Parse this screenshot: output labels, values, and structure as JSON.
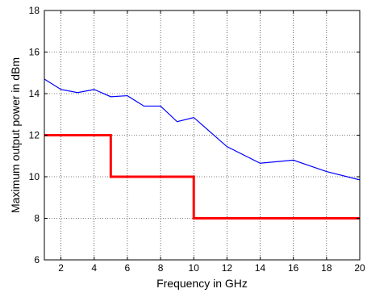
{
  "chart_data": {
    "type": "line",
    "title": "",
    "xlabel": "Frequency in GHz",
    "ylabel": "Maximum output power in dBm",
    "xlim": [
      1,
      20
    ],
    "ylim": [
      6,
      18
    ],
    "xticks": [
      2,
      4,
      6,
      8,
      10,
      12,
      14,
      16,
      18,
      20
    ],
    "yticks": [
      6,
      8,
      10,
      12,
      14,
      16,
      18
    ],
    "grid": true,
    "grid_style": "dotted",
    "legend": "none",
    "series": [
      {
        "color": "#0000ff",
        "line_width": "thin",
        "x": [
          1,
          2,
          3,
          4,
          5,
          6,
          7,
          8,
          9,
          10,
          12,
          14,
          16,
          18,
          20
        ],
        "y": [
          14.7,
          14.2,
          14.05,
          14.2,
          13.85,
          13.9,
          13.4,
          13.4,
          12.65,
          12.85,
          11.45,
          10.65,
          10.8,
          10.25,
          9.85
        ]
      },
      {
        "color": "#ff0000",
        "line_width": "thick",
        "x": [
          1,
          5,
          5,
          10,
          10,
          20
        ],
        "y": [
          12,
          12,
          10,
          10,
          8,
          8
        ]
      }
    ]
  }
}
